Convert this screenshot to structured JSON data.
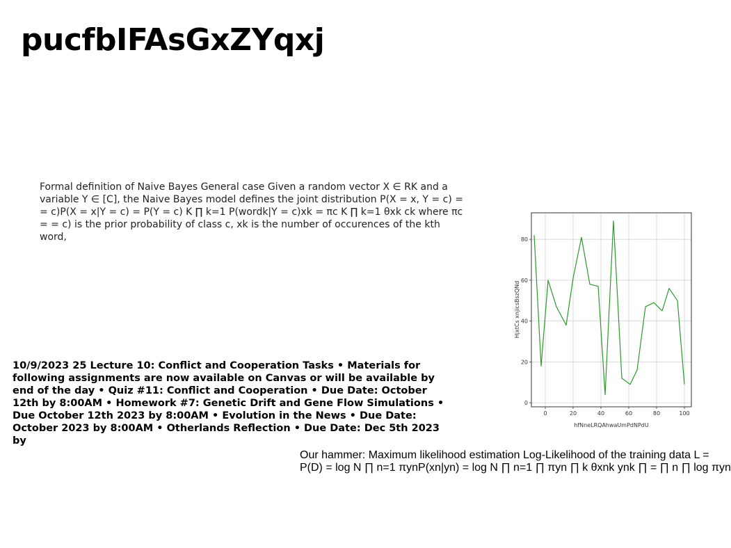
{
  "title": "pucfbIFAsGxZYqxj",
  "naive_bayes_text": "Formal definition of Naive Bayes General case Given a random vector X ∈ RK and a variable Y ∈ [C], the Naive Bayes model defines the joint distribution P(X = x, Y = c) = = c)P(X = x|Y = c) = P(Y = c) K ∏ k=1 P(wordk|Y = c)xk = πc K ∏ k=1 θxk ck where πc = = c) is the prior probability of class c, xk is the number of occurences of the kth word,",
  "lecture_text": "10/9/2023 25 Lecture 10: Conflict and Cooperation Tasks • Materials for following assignments are now available on Canvas or will be available by end of the day • Quiz #11: Conflict and Cooperation • Due Date: October 12th by 8:00AM • Homework #7: Genetic Drift and Gene Flow Simulations • Due October 12th 2023 by 8:00AM • Evolution in the News • Due Date: October 2023 by 8:00AM • Otherlands Reflection • Due Date: Dec 5th 2023 by",
  "mle_text_line1": "Our hammer: Maximum likelihood estimation Log-Likelihood of the training data L =",
  "mle_text_line2": "P(D) = log N ∏ n=1 πynP(xn|yn) = log N ∏ n=1 ∏ πyn ∏ k θxnk ynk ∏ = ∏ n ∏ log πyn",
  "chart_data": {
    "type": "line",
    "xlabel": "hfNneLRQAhwaUmPdNPdU",
    "ylabel": "HjxtCs xnjicsBszQNd",
    "xlim": [
      -10,
      105
    ],
    "ylim": [
      -2,
      93
    ],
    "xticks": [
      0,
      20,
      40,
      60,
      80,
      100
    ],
    "yticks": [
      0,
      20,
      40,
      60,
      80
    ],
    "grid": true,
    "series": [
      {
        "color": "#2a9a2a",
        "x": [
          -8,
          -3,
          2,
          8,
          15,
          20,
          26,
          32,
          38,
          43,
          49,
          55,
          61,
          66,
          72,
          78,
          84,
          89,
          95,
          100
        ],
        "y": [
          82,
          18,
          60,
          47,
          38,
          61,
          81,
          58,
          57,
          4,
          89,
          12,
          9,
          16,
          47,
          49,
          45,
          56,
          50,
          9
        ]
      }
    ]
  }
}
